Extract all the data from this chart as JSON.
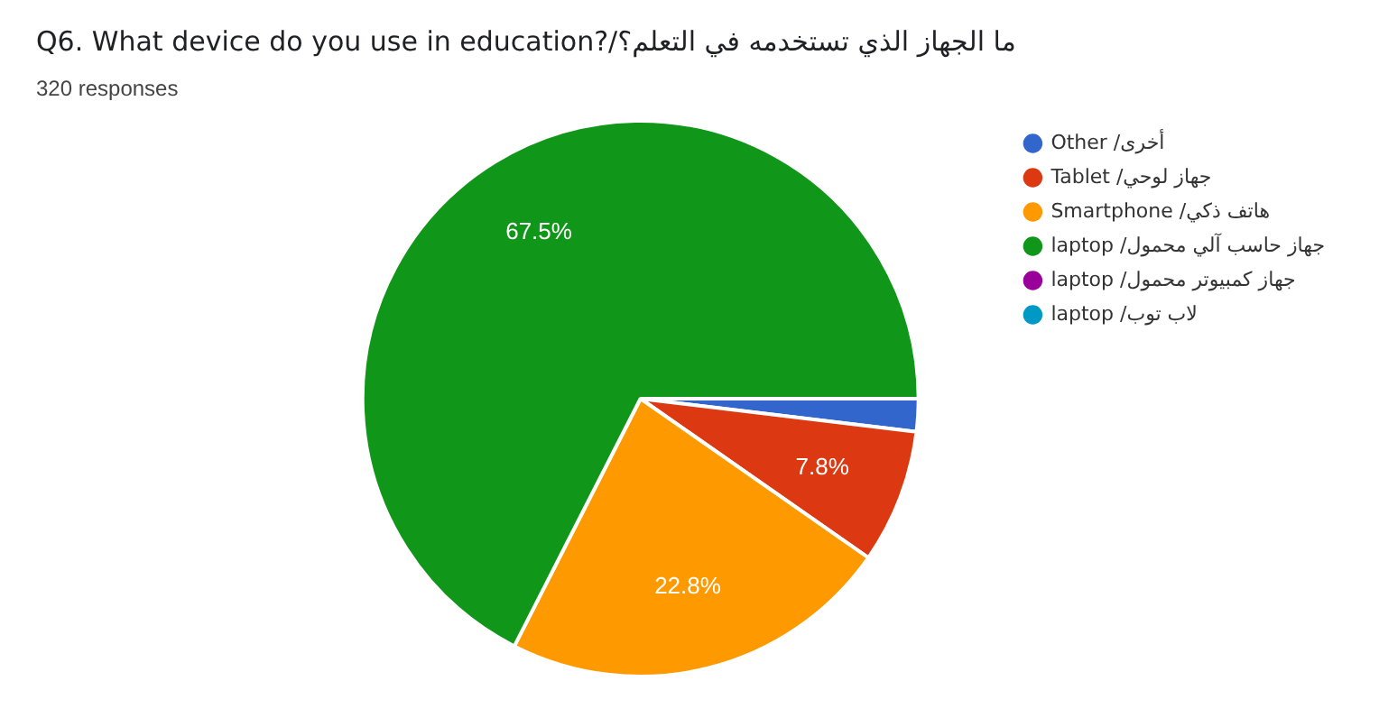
{
  "chart_data": {
    "type": "pie",
    "title": "Q6. What device do you use in education?/ما الجهاز الذي تستخدمه في التعلم؟",
    "subtitle": "320 responses",
    "categories": [
      "Other /أخرى",
      "Tablet /جهاز لوحي",
      "Smartphone /هاتف ذكي",
      "laptop /جهاز حاسب آلي محمول",
      "laptop /جهاز كمبيوتر محمول",
      "laptop /لاب توب"
    ],
    "values": [
      1.9,
      7.8,
      22.8,
      67.5,
      0,
      0
    ],
    "colors": [
      "#3366cc",
      "#dc3912",
      "#ff9900",
      "#109618",
      "#990099",
      "#0099c6"
    ],
    "value_labels": [
      null,
      "7.8%",
      "22.8%",
      "67.5%",
      null,
      null
    ],
    "legend": "right"
  }
}
